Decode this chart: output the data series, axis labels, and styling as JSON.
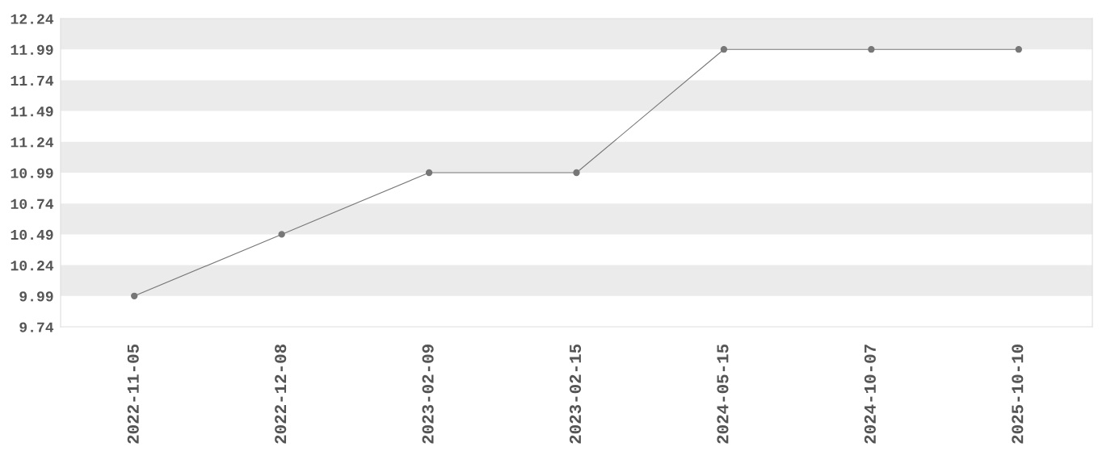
{
  "chart_data": {
    "type": "line",
    "categories": [
      "2022-11-05",
      "2022-12-08",
      "2023-02-09",
      "2023-02-15",
      "2024-05-15",
      "2024-10-07",
      "2025-10-10"
    ],
    "series": [
      {
        "color": "#777777",
        "values": [
          9.99,
          10.49,
          10.99,
          10.99,
          11.99,
          11.99,
          11.99
        ]
      }
    ],
    "ylim": [
      9.74,
      12.24
    ],
    "yticks": [
      9.74,
      9.99,
      10.24,
      10.49,
      10.74,
      10.99,
      11.24,
      11.49,
      11.74,
      11.99,
      12.24
    ],
    "bands": [
      {
        "axis": "y",
        "from": 9.99,
        "to": 10.24,
        "color": "#ebebeb"
      },
      {
        "axis": "y",
        "from": 10.49,
        "to": 10.74,
        "color": "#ebebeb"
      },
      {
        "axis": "y",
        "from": 10.99,
        "to": 11.24,
        "color": "#ebebeb"
      },
      {
        "axis": "y",
        "from": 11.49,
        "to": 11.74,
        "color": "#ebebeb"
      },
      {
        "axis": "y",
        "from": 11.99,
        "to": 12.24,
        "color": "#ebebeb"
      }
    ],
    "marker": "circle",
    "line_style": "solid",
    "legend": false,
    "grid": false
  }
}
